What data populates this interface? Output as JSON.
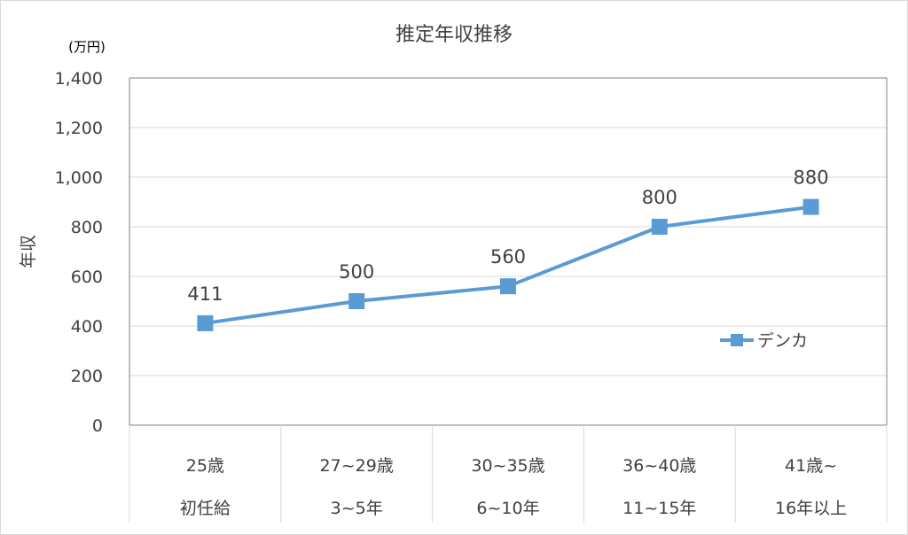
{
  "chart_data": {
    "type": "line",
    "title": "推定年収推移",
    "ylabel": "年収",
    "unit_label": "(万円)",
    "ylim": [
      0,
      1400
    ],
    "yticks": [
      0,
      200,
      400,
      600,
      800,
      1000,
      1200,
      1400
    ],
    "ytick_labels": [
      "0",
      "200",
      "400",
      "600",
      "800",
      "1,000",
      "1,200",
      "1,400"
    ],
    "categories": [
      [
        "25歳",
        "初任給"
      ],
      [
        "27~29歳",
        "3~5年"
      ],
      [
        "30~35歳",
        "6~10年"
      ],
      [
        "36~40歳",
        "11~15年"
      ],
      [
        "41歳~",
        "16年以上"
      ]
    ],
    "series": [
      {
        "name": "デンカ",
        "values": [
          411,
          500,
          560,
          800,
          880
        ],
        "color": "#5b9bd5"
      }
    ],
    "grid": true,
    "legend_position": "right"
  },
  "colors": {
    "series": "#5b9bd5",
    "grid": "#d9d9d9",
    "axis": "#808080",
    "text": "#404040",
    "border": "#d9d9d9"
  }
}
